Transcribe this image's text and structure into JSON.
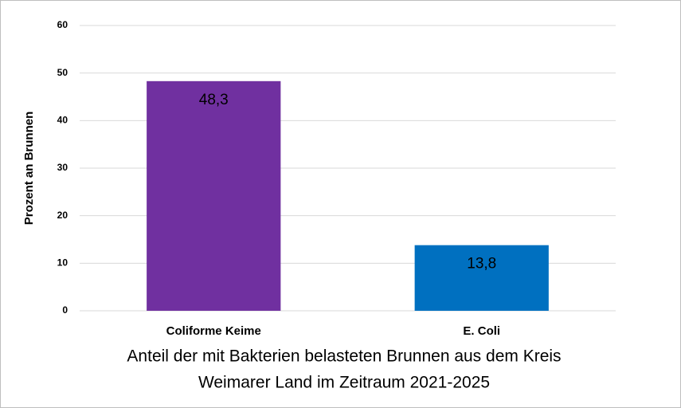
{
  "chart_data": {
    "type": "bar",
    "title_lines": [
      "Anteil der mit Bakterien belasteten Brunnen aus dem Kreis",
      "Weimarer Land im Zeitraum 2021-2025"
    ],
    "ylabel": "Prozent an Brunnen",
    "categories": [
      "Coliforme Keime",
      "E. Coli"
    ],
    "values": [
      48.3,
      13.8
    ],
    "value_labels": [
      "48,3",
      "13,8"
    ],
    "colors": [
      "#7030a0",
      "#0070c0"
    ],
    "ylim": [
      0,
      60
    ],
    "yticks": [
      0,
      10,
      20,
      30,
      40,
      50,
      60
    ],
    "grid": true
  }
}
